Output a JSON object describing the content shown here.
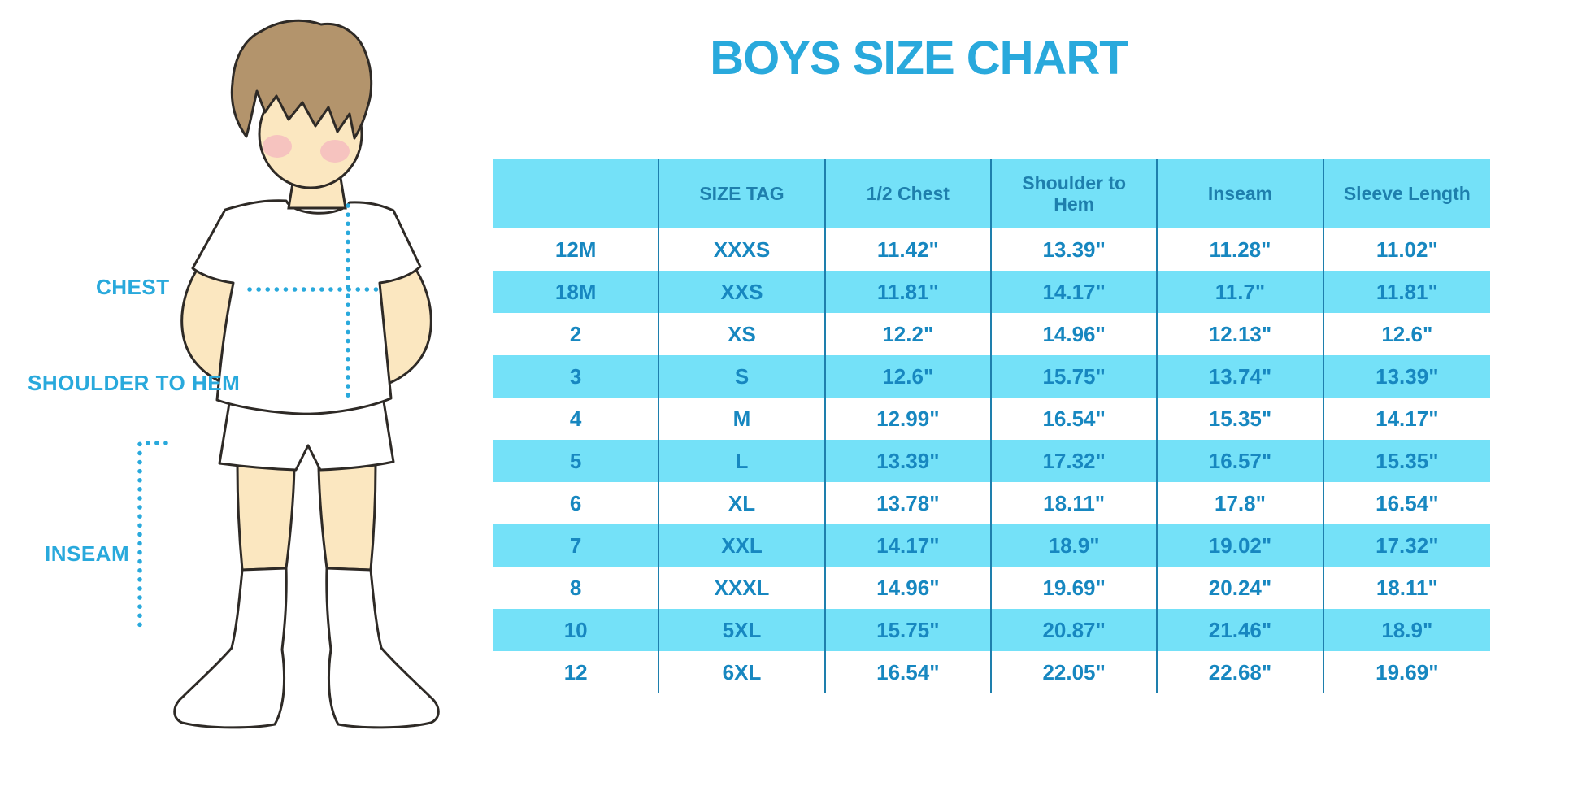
{
  "title": "BOYS SIZE CHART",
  "colors": {
    "title": "#29a9dc",
    "header_bg": "#74e1f8",
    "stripe_bg": "#74e1f8",
    "header_text": "#1e7fad",
    "cell_text": "#1787c0",
    "separator": "#1e7fad",
    "label_text": "#29a9dc",
    "dotted_line": "#29a9dc",
    "skin": "#fbe7c0",
    "hair": "#b3946c",
    "outline": "#2e2a26",
    "blush": "#f2a6bd",
    "garment": "#ffffff"
  },
  "diagram": {
    "labels": {
      "chest": "CHEST",
      "shoulder_to_hem": "SHOULDER TO HEM",
      "inseam": "INSEAM"
    }
  },
  "chart_data": {
    "type": "table",
    "title": "BOYS SIZE CHART",
    "columns": [
      "",
      "SIZE TAG",
      "1/2 Chest",
      "Shoulder to Hem",
      "Inseam",
      "Sleeve Length"
    ],
    "rows": [
      [
        "12M",
        "XXXS",
        "11.42\"",
        "13.39\"",
        "11.28\"",
        "11.02\""
      ],
      [
        "18M",
        "XXS",
        "11.81\"",
        "14.17\"",
        "11.7\"",
        "11.81\""
      ],
      [
        "2",
        "XS",
        "12.2\"",
        "14.96\"",
        "12.13\"",
        "12.6\""
      ],
      [
        "3",
        "S",
        "12.6\"",
        "15.75\"",
        "13.74\"",
        "13.39\""
      ],
      [
        "4",
        "M",
        "12.99\"",
        "16.54\"",
        "15.35\"",
        "14.17\""
      ],
      [
        "5",
        "L",
        "13.39\"",
        "17.32\"",
        "16.57\"",
        "15.35\""
      ],
      [
        "6",
        "XL",
        "13.78\"",
        "18.11\"",
        "17.8\"",
        "16.54\""
      ],
      [
        "7",
        "XXL",
        "14.17\"",
        "18.9\"",
        "19.02\"",
        "17.32\""
      ],
      [
        "8",
        "XXXL",
        "14.96\"",
        "19.69\"",
        "20.24\"",
        "18.11\""
      ],
      [
        "10",
        "5XL",
        "15.75\"",
        "20.87\"",
        "21.46\"",
        "18.9\""
      ],
      [
        "12",
        "6XL",
        "16.54\"",
        "22.05\"",
        "22.68\"",
        "19.69\""
      ]
    ],
    "stripe_pattern": "alternating rows, second row shaded",
    "layout": {
      "grid": false,
      "equal_columns": 6
    }
  }
}
